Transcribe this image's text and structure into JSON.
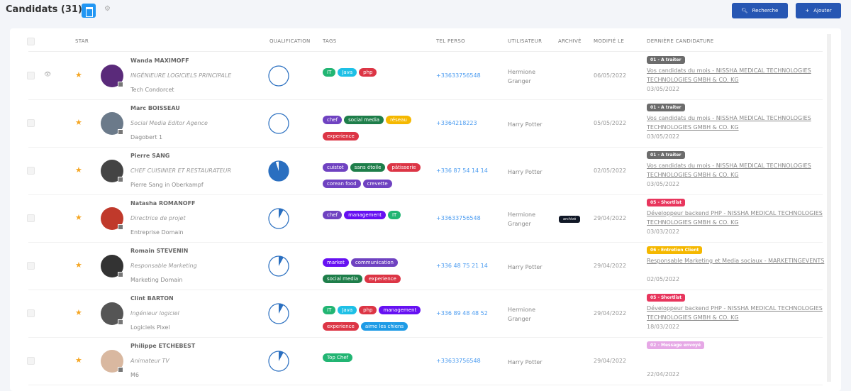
{
  "header": {
    "title": "Candidats (31)",
    "search_label": "Recherche",
    "add_label": "Ajouter"
  },
  "columns": {
    "star": "STAR",
    "qualification": "QUALIFICATION",
    "tags": "TAGS",
    "tel": "TEL PERSO",
    "user": "UTILISATEUR",
    "archive": "ARCHIVÉ",
    "modified": "MODIFIÉ LE",
    "last": "DERNIÈRE CANDIDATURE"
  },
  "colors": {
    "accent": "#2656b3",
    "pie": "#2a6fc0"
  },
  "rows": [
    {
      "name": "Wanda MAXIMOFF",
      "job": "INGÉNIEURE LOGICIELS PRINCIPALE",
      "company": "Tech Condorcet",
      "qualification": 0,
      "tags": [
        {
          "label": "IT",
          "color": "#22b573"
        },
        {
          "label": "Java",
          "color": "#1ec0e6"
        },
        {
          "label": "php",
          "color": "#dc3545"
        }
      ],
      "tel": "+33633756548",
      "user": "Hermione Granger",
      "archived": "",
      "modified": "06/05/2022",
      "stage": "01 - A traiter",
      "stage_color": "#6c6c6c",
      "application": "Vos candidats du mois - NISSHA MEDICAL TECHNOLOGIES TECHNOLOGIES GMBH & CO. KG",
      "app_date": "03/05/2022",
      "eye": true,
      "avatar": "#5a2a7a"
    },
    {
      "name": "Marc BOISSEAU",
      "job": "Social Media Editor Agence",
      "company": "Dagobert 1",
      "qualification": 0,
      "tags": [
        {
          "label": "chef",
          "color": "#6f42c1"
        },
        {
          "label": "social media",
          "color": "#1e7e4a"
        },
        {
          "label": "réseau",
          "color": "#f5b800"
        },
        {
          "label": "experience",
          "color": "#dc3545"
        }
      ],
      "tel": "+3364218223",
      "user": "Harry Potter",
      "archived": "",
      "modified": "05/05/2022",
      "stage": "01 - A traiter",
      "stage_color": "#6c6c6c",
      "application": "Vos candidats du mois - NISSHA MEDICAL TECHNOLOGIES TECHNOLOGIES GMBH & CO. KG",
      "app_date": "03/05/2022",
      "avatar": "#6b7a8a"
    },
    {
      "name": "Pierre SANG",
      "job": "CHEF CUISINIER ET RESTAURATEUR",
      "company": "Pierre Sang in Oberkampf",
      "qualification": 0.95,
      "tags": [
        {
          "label": "cuistot",
          "color": "#6f42c1"
        },
        {
          "label": "sans étoile",
          "color": "#1e7e4a"
        },
        {
          "label": "pâtisserie",
          "color": "#dc3545"
        },
        {
          "label": "corean food",
          "color": "#6f42c1"
        },
        {
          "label": "crevette",
          "color": "#6f42c1"
        }
      ],
      "tel": "+336 87 54 14 14",
      "user": "Harry Potter",
      "archived": "",
      "modified": "02/05/2022",
      "stage": "01 - A traiter",
      "stage_color": "#6c6c6c",
      "application": "Vos candidats du mois - NISSHA MEDICAL TECHNOLOGIES TECHNOLOGIES GMBH & CO. KG",
      "app_date": "03/05/2022",
      "avatar": "#444"
    },
    {
      "name": "Natasha ROMANOFF",
      "job": "Directrice de projet",
      "company": "Entreprise Domain",
      "qualification": 0.08,
      "tags": [
        {
          "label": "chef",
          "color": "#6f42c1"
        },
        {
          "label": "management",
          "color": "#6610f2"
        },
        {
          "label": "IT",
          "color": "#22b573"
        }
      ],
      "tel": "+33633756548",
      "user": "Hermione Granger",
      "archived": "archivé",
      "modified": "29/04/2022",
      "stage": "05 - Shortlist",
      "stage_color": "#e8365d",
      "application": "Développeur backend PHP - NISSHA MEDICAL TECHNOLOGIES TECHNOLOGIES GMBH & CO. KG",
      "app_date": "03/03/2022",
      "avatar": "#c0392b"
    },
    {
      "name": "Romain STEVENIN",
      "job": "Responsable Marketing",
      "company": "Marketing Domain",
      "qualification": 0.08,
      "tags": [
        {
          "label": "market",
          "color": "#6610f2"
        },
        {
          "label": "communication",
          "color": "#6f42c1"
        },
        {
          "label": "social media",
          "color": "#1e7e4a"
        },
        {
          "label": "experience",
          "color": "#dc3545"
        }
      ],
      "tel": "+336 48 75 21 14",
      "user": "Harry Potter",
      "archived": "",
      "modified": "29/04/2022",
      "stage": "06 - Entretien Client",
      "stage_color": "#f5b800",
      "application": "Responsable Marketing et Media sociaux - MARKETINGEVENTS",
      "app_date": "02/05/2022",
      "avatar": "#333"
    },
    {
      "name": "Clint BARTON",
      "job": "Ingénieur logiciel",
      "company": "Logiciels Pixel",
      "qualification": 0.08,
      "tags": [
        {
          "label": "IT",
          "color": "#22b573"
        },
        {
          "label": "Java",
          "color": "#1ec0e6"
        },
        {
          "label": "php",
          "color": "#dc3545"
        },
        {
          "label": "management",
          "color": "#6610f2"
        },
        {
          "label": "experience",
          "color": "#dc3545"
        },
        {
          "label": "aime les chiens",
          "color": "#1e9be6"
        }
      ],
      "tel": "+336 89 48 48 52",
      "user": "Hermione Granger",
      "archived": "",
      "modified": "29/04/2022",
      "stage": "05 - Shortlist",
      "stage_color": "#e8365d",
      "application": "Développeur backend PHP - NISSHA MEDICAL TECHNOLOGIES TECHNOLOGIES GMBH & CO. KG",
      "app_date": "18/03/2022",
      "avatar": "#555"
    },
    {
      "name": "Philippe ETCHEBEST",
      "job": "Animateur TV",
      "company": "M6",
      "qualification": 0.08,
      "tags": [
        {
          "label": "Top Chef",
          "color": "#22b573"
        }
      ],
      "tel": "+33633756548",
      "user": "Harry Potter",
      "archived": "",
      "modified": "29/04/2022",
      "stage": "02 - Message envoyé",
      "stage_color": "#e6a8e6",
      "application": "",
      "app_date": "22/04/2022",
      "avatar": "#d9b8a0"
    }
  ]
}
